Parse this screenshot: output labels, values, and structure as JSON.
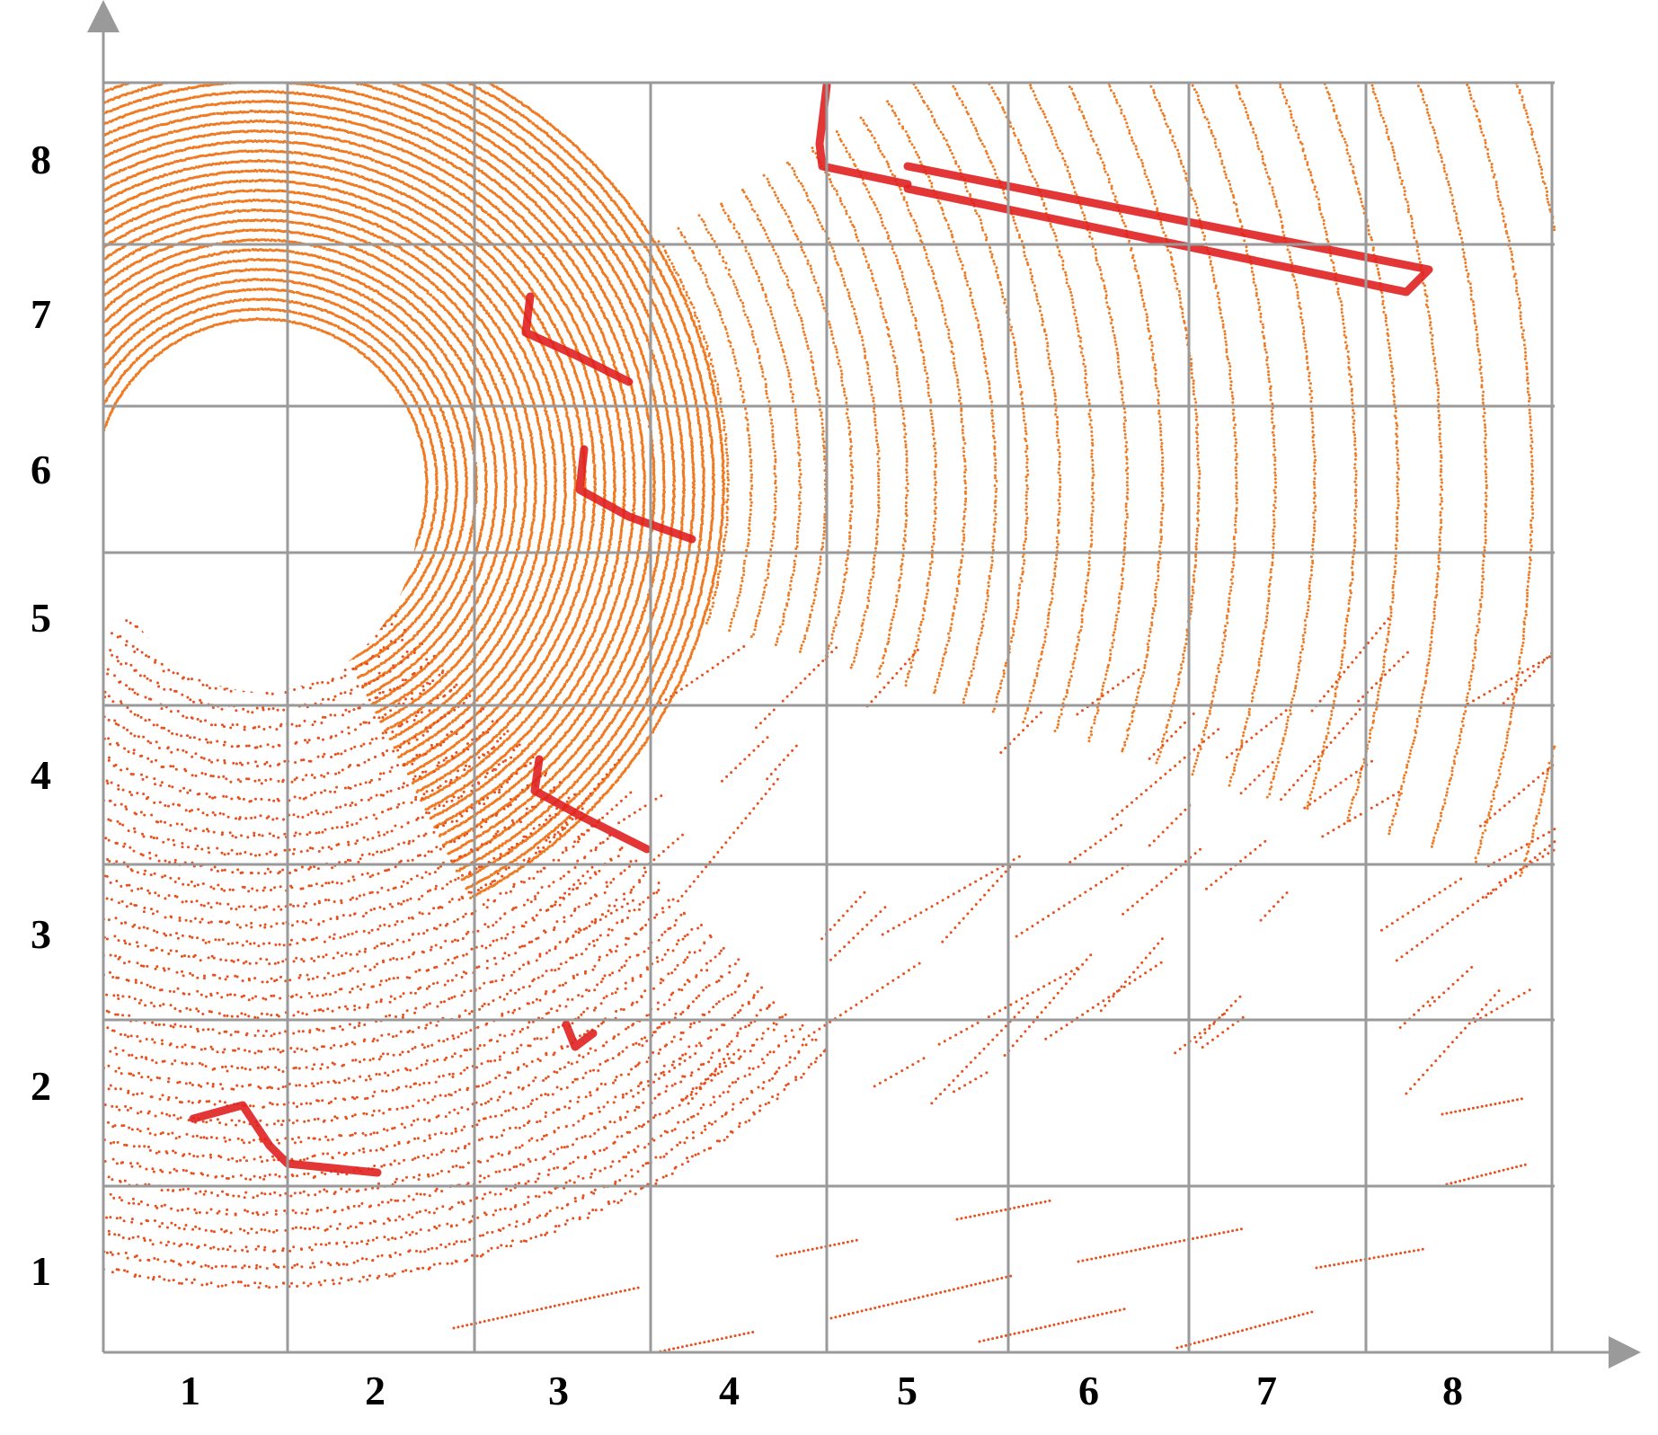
{
  "image": {
    "kind": "lidar point cloud, bird's-eye view, overlaid with an 8x8 grid",
    "background_color": "#ffffff",
    "grid_color": "#9a9a9a",
    "axis_color": "#9a9a9a",
    "point_colors": {
      "near": "#f07a22",
      "mid": "#e8501e",
      "objects": "#e02020"
    }
  },
  "axes": {
    "x_tick_labels": [
      "1",
      "2",
      "3",
      "4",
      "5",
      "6",
      "7",
      "8"
    ],
    "y_tick_labels": [
      "8",
      "7",
      "6",
      "5",
      "4",
      "3",
      "2",
      "1"
    ]
  }
}
